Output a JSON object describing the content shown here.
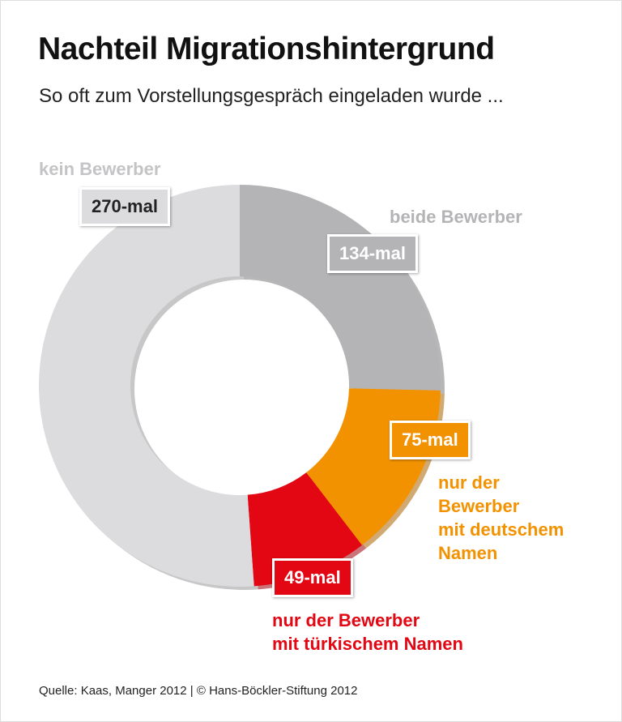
{
  "chart_data": {
    "type": "pie",
    "title": "Nachteil Migrationshintergrund",
    "subtitle": "So oft zum Vorstellungsgespräch eingeladen wurde ...",
    "source": "Quelle: Kaas, Manger 2012 | © Hans-Böckler-Stiftung 2012",
    "categories": [
      "beide Bewerber",
      "nur der\nBewerber\nmit deutschem\nNamen",
      "nur der Bewerber\nmit türkischem Namen",
      "kein Bewerber"
    ],
    "values": [
      134,
      75,
      49,
      270
    ],
    "value_labels": [
      "134-mal",
      "75-mal",
      "49-mal",
      "270-mal"
    ],
    "colors": [
      "#b4b4b6",
      "#f39200",
      "#e30613",
      "#dcdcde"
    ],
    "donut": true
  }
}
